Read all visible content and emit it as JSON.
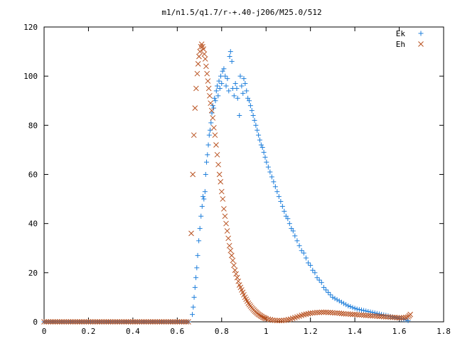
{
  "chart_data": {
    "type": "scatter",
    "title": "m1/n1.5/q1.7/r-+.40-j206/M25.0/512",
    "xlabel": "",
    "ylabel": "",
    "xlim": [
      0,
      1.8
    ],
    "ylim": [
      0,
      120
    ],
    "x_ticks": [
      0,
      0.2,
      0.4,
      0.6,
      0.8,
      1,
      1.2,
      1.4,
      1.6,
      1.8
    ],
    "x_tick_labels": [
      "0",
      "0.2",
      "0.4",
      "0.6",
      "0.8",
      "1",
      "1.2",
      "1.4",
      "1.6",
      "1.8"
    ],
    "y_ticks": [
      0,
      20,
      40,
      60,
      80,
      100,
      120
    ],
    "y_tick_labels": [
      "0",
      "20",
      "40",
      "60",
      "80",
      "100",
      "120"
    ],
    "grid": false,
    "legend_position": "top-right",
    "series": [
      {
        "name": "Ek",
        "marker": "plus",
        "color": "#1f7fdb",
        "points": [
          [
            0.0,
            0
          ],
          [
            0.05,
            0
          ],
          [
            0.1,
            0
          ],
          [
            0.15,
            0
          ],
          [
            0.2,
            0
          ],
          [
            0.25,
            0
          ],
          [
            0.3,
            0
          ],
          [
            0.35,
            0
          ],
          [
            0.4,
            0
          ],
          [
            0.45,
            0
          ],
          [
            0.5,
            0
          ],
          [
            0.55,
            0
          ],
          [
            0.6,
            0
          ],
          [
            0.65,
            0
          ],
          [
            0.668,
            3
          ],
          [
            0.672,
            6
          ],
          [
            0.676,
            10
          ],
          [
            0.68,
            14
          ],
          [
            0.684,
            18
          ],
          [
            0.688,
            22
          ],
          [
            0.692,
            27
          ],
          [
            0.697,
            33
          ],
          [
            0.702,
            38
          ],
          [
            0.707,
            43
          ],
          [
            0.712,
            47
          ],
          [
            0.716,
            51
          ],
          [
            0.72,
            50
          ],
          [
            0.725,
            53
          ],
          [
            0.728,
            60
          ],
          [
            0.732,
            65
          ],
          [
            0.736,
            68
          ],
          [
            0.74,
            72
          ],
          [
            0.744,
            76
          ],
          [
            0.748,
            78
          ],
          [
            0.752,
            81
          ],
          [
            0.756,
            85
          ],
          [
            0.76,
            88
          ],
          [
            0.764,
            87
          ],
          [
            0.768,
            91
          ],
          [
            0.772,
            90
          ],
          [
            0.776,
            94
          ],
          [
            0.78,
            96
          ],
          [
            0.784,
            92
          ],
          [
            0.788,
            98
          ],
          [
            0.792,
            95
          ],
          [
            0.796,
            100
          ],
          [
            0.8,
            97
          ],
          [
            0.804,
            102
          ],
          [
            0.81,
            103
          ],
          [
            0.816,
            100
          ],
          [
            0.82,
            96
          ],
          [
            0.826,
            99
          ],
          [
            0.832,
            94
          ],
          [
            0.836,
            108
          ],
          [
            0.84,
            110
          ],
          [
            0.846,
            106
          ],
          [
            0.85,
            95
          ],
          [
            0.856,
            92
          ],
          [
            0.862,
            97
          ],
          [
            0.868,
            95
          ],
          [
            0.872,
            91
          ],
          [
            0.88,
            84
          ],
          [
            0.884,
            100
          ],
          [
            0.89,
            96
          ],
          [
            0.896,
            93
          ],
          [
            0.9,
            99
          ],
          [
            0.906,
            97
          ],
          [
            0.912,
            94
          ],
          [
            0.918,
            91
          ],
          [
            0.924,
            90
          ],
          [
            0.93,
            88
          ],
          [
            0.936,
            86
          ],
          [
            0.942,
            84
          ],
          [
            0.948,
            82
          ],
          [
            0.954,
            80
          ],
          [
            0.96,
            78
          ],
          [
            0.966,
            76
          ],
          [
            0.972,
            74
          ],
          [
            0.978,
            72
          ],
          [
            0.984,
            71
          ],
          [
            0.99,
            69
          ],
          [
            0.996,
            67
          ],
          [
            1.002,
            65
          ],
          [
            1.01,
            63
          ],
          [
            1.018,
            61
          ],
          [
            1.026,
            59
          ],
          [
            1.034,
            57
          ],
          [
            1.042,
            55
          ],
          [
            1.05,
            53
          ],
          [
            1.058,
            51
          ],
          [
            1.066,
            49
          ],
          [
            1.074,
            47
          ],
          [
            1.082,
            45
          ],
          [
            1.09,
            43
          ],
          [
            1.098,
            42
          ],
          [
            1.106,
            40
          ],
          [
            1.114,
            38
          ],
          [
            1.122,
            37
          ],
          [
            1.13,
            35
          ],
          [
            1.14,
            33
          ],
          [
            1.15,
            31
          ],
          [
            1.16,
            29
          ],
          [
            1.17,
            28
          ],
          [
            1.18,
            26
          ],
          [
            1.19,
            24
          ],
          [
            1.2,
            23
          ],
          [
            1.21,
            21
          ],
          [
            1.22,
            20
          ],
          [
            1.23,
            18
          ],
          [
            1.24,
            17
          ],
          [
            1.25,
            16
          ],
          [
            1.26,
            14
          ],
          [
            1.27,
            13
          ],
          [
            1.28,
            12
          ],
          [
            1.29,
            11
          ],
          [
            1.3,
            10
          ],
          [
            1.31,
            9.5
          ],
          [
            1.32,
            9
          ],
          [
            1.33,
            8.5
          ],
          [
            1.34,
            8
          ],
          [
            1.35,
            7.5
          ],
          [
            1.36,
            7
          ],
          [
            1.37,
            6.5
          ],
          [
            1.38,
            6.2
          ],
          [
            1.39,
            5.8
          ],
          [
            1.4,
            5.5
          ],
          [
            1.41,
            5.2
          ],
          [
            1.42,
            5
          ],
          [
            1.43,
            4.8
          ],
          [
            1.44,
            4.6
          ],
          [
            1.45,
            4.4
          ],
          [
            1.46,
            4.2
          ],
          [
            1.47,
            4
          ],
          [
            1.48,
            3.8
          ],
          [
            1.49,
            3.6
          ],
          [
            1.5,
            3.4
          ],
          [
            1.51,
            3.2
          ],
          [
            1.52,
            3
          ],
          [
            1.53,
            2.8
          ],
          [
            1.54,
            2.6
          ],
          [
            1.55,
            2.4
          ],
          [
            1.56,
            2.2
          ],
          [
            1.57,
            2
          ],
          [
            1.58,
            1.8
          ],
          [
            1.59,
            1.6
          ],
          [
            1.6,
            1.4
          ],
          [
            1.61,
            1.2
          ],
          [
            1.62,
            1
          ],
          [
            1.63,
            0.8
          ],
          [
            1.64,
            0.5
          ]
        ]
      },
      {
        "name": "Eh",
        "marker": "cross",
        "color": "#b8501e",
        "points": [
          [
            0.0,
            0
          ],
          [
            0.05,
            0
          ],
          [
            0.1,
            0
          ],
          [
            0.15,
            0
          ],
          [
            0.2,
            0
          ],
          [
            0.25,
            0
          ],
          [
            0.3,
            0
          ],
          [
            0.35,
            0
          ],
          [
            0.4,
            0
          ],
          [
            0.45,
            0
          ],
          [
            0.5,
            0
          ],
          [
            0.55,
            0
          ],
          [
            0.6,
            0
          ],
          [
            0.65,
            0
          ],
          [
            0.663,
            36
          ],
          [
            0.67,
            60
          ],
          [
            0.675,
            76
          ],
          [
            0.68,
            87
          ],
          [
            0.685,
            95
          ],
          [
            0.69,
            101
          ],
          [
            0.694,
            105
          ],
          [
            0.698,
            108
          ],
          [
            0.702,
            110
          ],
          [
            0.706,
            112
          ],
          [
            0.71,
            113
          ],
          [
            0.714,
            112
          ],
          [
            0.718,
            111
          ],
          [
            0.722,
            109
          ],
          [
            0.726,
            107
          ],
          [
            0.73,
            104
          ],
          [
            0.734,
            101
          ],
          [
            0.738,
            98
          ],
          [
            0.742,
            95
          ],
          [
            0.746,
            92
          ],
          [
            0.75,
            89
          ],
          [
            0.755,
            86
          ],
          [
            0.76,
            83
          ],
          [
            0.765,
            79
          ],
          [
            0.77,
            76
          ],
          [
            0.775,
            72
          ],
          [
            0.78,
            68
          ],
          [
            0.785,
            64
          ],
          [
            0.79,
            60
          ],
          [
            0.795,
            57
          ],
          [
            0.8,
            53
          ],
          [
            0.805,
            50
          ],
          [
            0.81,
            46
          ],
          [
            0.815,
            43
          ],
          [
            0.82,
            40
          ],
          [
            0.825,
            37
          ],
          [
            0.83,
            34
          ],
          [
            0.835,
            31
          ],
          [
            0.84,
            29
          ],
          [
            0.845,
            27
          ],
          [
            0.85,
            25
          ],
          [
            0.855,
            23
          ],
          [
            0.86,
            21
          ],
          [
            0.865,
            19.5
          ],
          [
            0.87,
            18
          ],
          [
            0.875,
            16.5
          ],
          [
            0.88,
            15
          ],
          [
            0.885,
            14
          ],
          [
            0.89,
            13
          ],
          [
            0.895,
            12
          ],
          [
            0.9,
            11
          ],
          [
            0.905,
            10
          ],
          [
            0.91,
            9.2
          ],
          [
            0.915,
            8.4
          ],
          [
            0.92,
            7.6
          ],
          [
            0.925,
            7
          ],
          [
            0.93,
            6.4
          ],
          [
            0.935,
            5.8
          ],
          [
            0.94,
            5.3
          ],
          [
            0.945,
            4.8
          ],
          [
            0.95,
            4.3
          ],
          [
            0.955,
            3.9
          ],
          [
            0.96,
            3.5
          ],
          [
            0.965,
            3.1
          ],
          [
            0.97,
            2.8
          ],
          [
            0.975,
            2.5
          ],
          [
            0.98,
            2.2
          ],
          [
            0.985,
            1.9
          ],
          [
            0.99,
            1.7
          ],
          [
            0.995,
            1.5
          ],
          [
            1.0,
            1.3
          ],
          [
            1.01,
            1.1
          ],
          [
            1.02,
            0.9
          ],
          [
            1.03,
            0.7
          ],
          [
            1.04,
            0.6
          ],
          [
            1.05,
            0.5
          ],
          [
            1.06,
            0.5
          ],
          [
            1.07,
            0.5
          ],
          [
            1.08,
            0.6
          ],
          [
            1.09,
            0.7
          ],
          [
            1.1,
            0.9
          ],
          [
            1.11,
            1.1
          ],
          [
            1.12,
            1.4
          ],
          [
            1.13,
            1.7
          ],
          [
            1.14,
            2
          ],
          [
            1.15,
            2.3
          ],
          [
            1.16,
            2.6
          ],
          [
            1.17,
            2.9
          ],
          [
            1.18,
            3.1
          ],
          [
            1.19,
            3.3
          ],
          [
            1.2,
            3.5
          ],
          [
            1.21,
            3.6
          ],
          [
            1.22,
            3.7
          ],
          [
            1.23,
            3.8
          ],
          [
            1.24,
            3.8
          ],
          [
            1.25,
            3.9
          ],
          [
            1.26,
            3.9
          ],
          [
            1.27,
            3.9
          ],
          [
            1.28,
            3.8
          ],
          [
            1.29,
            3.8
          ],
          [
            1.3,
            3.7
          ],
          [
            1.31,
            3.6
          ],
          [
            1.32,
            3.6
          ],
          [
            1.33,
            3.5
          ],
          [
            1.34,
            3.4
          ],
          [
            1.35,
            3.3
          ],
          [
            1.36,
            3.2
          ],
          [
            1.37,
            3.2
          ],
          [
            1.38,
            3.1
          ],
          [
            1.39,
            3
          ],
          [
            1.4,
            3
          ],
          [
            1.41,
            2.9
          ],
          [
            1.42,
            2.8
          ],
          [
            1.43,
            2.8
          ],
          [
            1.44,
            2.7
          ],
          [
            1.45,
            2.6
          ],
          [
            1.46,
            2.6
          ],
          [
            1.47,
            2.5
          ],
          [
            1.48,
            2.4
          ],
          [
            1.49,
            2.4
          ],
          [
            1.5,
            2.3
          ],
          [
            1.51,
            2.2
          ],
          [
            1.52,
            2.2
          ],
          [
            1.53,
            2.1
          ],
          [
            1.54,
            2
          ],
          [
            1.55,
            2
          ],
          [
            1.56,
            1.9
          ],
          [
            1.57,
            1.8
          ],
          [
            1.58,
            1.8
          ],
          [
            1.59,
            1.7
          ],
          [
            1.6,
            1.6
          ],
          [
            1.61,
            1.6
          ],
          [
            1.62,
            1.7
          ],
          [
            1.63,
            1.8
          ],
          [
            1.64,
            2
          ],
          [
            1.645,
            2.5
          ],
          [
            1.65,
            3
          ]
        ]
      }
    ]
  }
}
